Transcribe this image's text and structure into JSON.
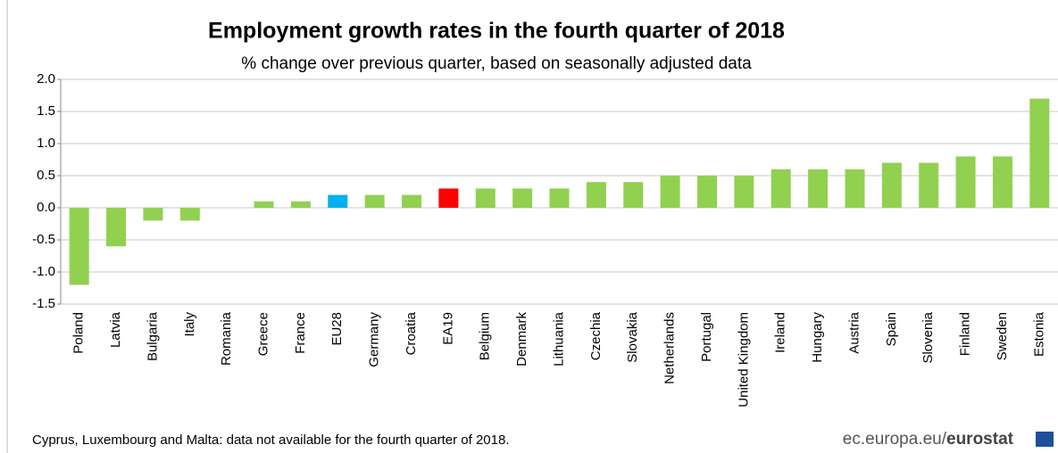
{
  "chart_data": {
    "type": "bar",
    "title": "Employment growth rates in the fourth quarter of 2018",
    "subtitle": "% change over previous quarter, based on seasonally adjusted data",
    "categories": [
      "Poland",
      "Latvia",
      "Bulgaria",
      "Italy",
      "Romania",
      "Greece",
      "France",
      "EU28",
      "Germany",
      "Croatia",
      "EA19",
      "Belgium",
      "Denmark",
      "Lithuania",
      "Czechia",
      "Slovakia",
      "Netherlands",
      "Portugal",
      "United Kingdom",
      "Ireland",
      "Hungary",
      "Austria",
      "Spain",
      "Slovenia",
      "Finland",
      "Sweden",
      "Estonia"
    ],
    "values": [
      -1.2,
      -0.6,
      -0.2,
      -0.2,
      0.0,
      0.1,
      0.1,
      0.2,
      0.2,
      0.2,
      0.3,
      0.3,
      0.3,
      0.3,
      0.4,
      0.4,
      0.5,
      0.5,
      0.5,
      0.6,
      0.6,
      0.6,
      0.7,
      0.7,
      0.8,
      0.8,
      1.7
    ],
    "colors": [
      "#92d050",
      "#92d050",
      "#92d050",
      "#92d050",
      "#92d050",
      "#92d050",
      "#92d050",
      "#00b0f0",
      "#92d050",
      "#92d050",
      "#ff0000",
      "#92d050",
      "#92d050",
      "#92d050",
      "#92d050",
      "#92d050",
      "#92d050",
      "#92d050",
      "#92d050",
      "#92d050",
      "#92d050",
      "#92d050",
      "#92d050",
      "#92d050",
      "#92d050",
      "#92d050",
      "#92d050"
    ],
    "ylim": [
      -1.5,
      2.0
    ],
    "yticks": [
      {
        "value": -1.5,
        "label": "-1.5"
      },
      {
        "value": -1.0,
        "label": "-1.0"
      },
      -0.5,
      {
        "value": 0.0,
        "label": "0.0"
      },
      0.5,
      {
        "value": 1.0,
        "label": "1.0"
      },
      1.5,
      {
        "value": 2.0,
        "label": "2.0"
      }
    ],
    "grid": true,
    "footnote": "Cyprus, Luxembourg and Malta: data not available for the fourth quarter of 2018.",
    "source_prefix": "ec.europa.eu/",
    "source_name": "eurostat"
  }
}
